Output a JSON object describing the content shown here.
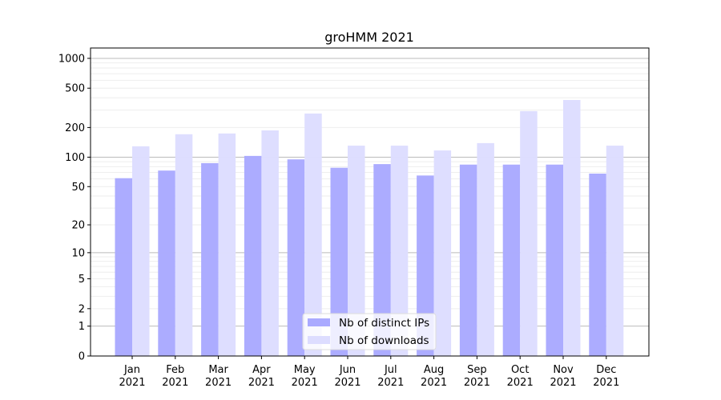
{
  "chart_data": {
    "type": "bar",
    "title": "groHMM 2021",
    "xlabel": "",
    "ylabel": "",
    "yscale": "log(1+x)",
    "ylim": [
      0,
      1300
    ],
    "yticks": [
      0,
      1,
      2,
      5,
      10,
      20,
      50,
      100,
      200,
      500,
      1000
    ],
    "ytick_labels": [
      "0",
      "1",
      "2",
      "5",
      "10",
      "20",
      "50",
      "100",
      "200",
      "500",
      "1000"
    ],
    "categories": [
      "Jan\n2021",
      "Feb\n2021",
      "Mar\n2021",
      "Apr\n2021",
      "May\n2021",
      "Jun\n2021",
      "Jul\n2021",
      "Aug\n2021",
      "Sep\n2021",
      "Oct\n2021",
      "Nov\n2021",
      "Dec\n2021"
    ],
    "category_months": [
      "Jan",
      "Feb",
      "Mar",
      "Apr",
      "May",
      "Jun",
      "Jul",
      "Aug",
      "Sep",
      "Oct",
      "Nov",
      "Dec"
    ],
    "category_year": "2021",
    "series": [
      {
        "name": "Nb of distinct IPs",
        "color": "#aaaaff",
        "values": [
          61,
          73,
          87,
          103,
          95,
          78,
          85,
          65,
          84,
          84,
          84,
          68
        ]
      },
      {
        "name": "Nb of downloads",
        "color": "#ddddff",
        "values": [
          129,
          171,
          174,
          187,
          277,
          131,
          131,
          117,
          139,
          293,
          380,
          131
        ]
      }
    ],
    "legend": "bottom-center",
    "grid": true
  }
}
